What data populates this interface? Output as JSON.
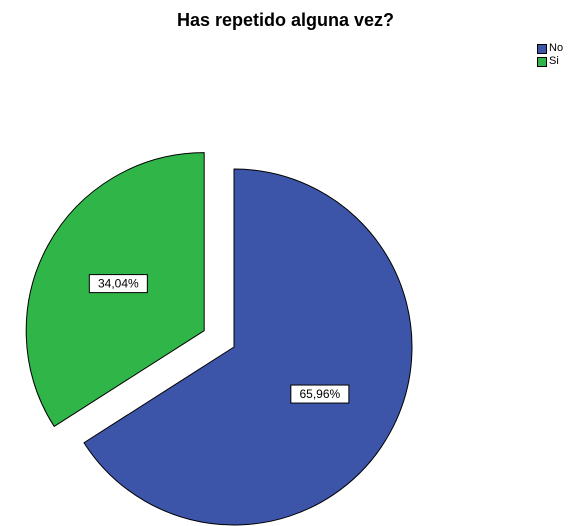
{
  "chart_data": {
    "type": "pie",
    "title": "Has repetido alguna vez?",
    "slices": [
      {
        "label": "No",
        "value": 65.96,
        "display": "65,96%",
        "color": "#3d55a8",
        "exploded": false
      },
      {
        "label": "Si",
        "value": 34.04,
        "display": "34,04%",
        "color": "#2fb548",
        "exploded": true
      }
    ],
    "legend": {
      "position": "top-right",
      "items": [
        "No",
        "Si"
      ]
    }
  }
}
